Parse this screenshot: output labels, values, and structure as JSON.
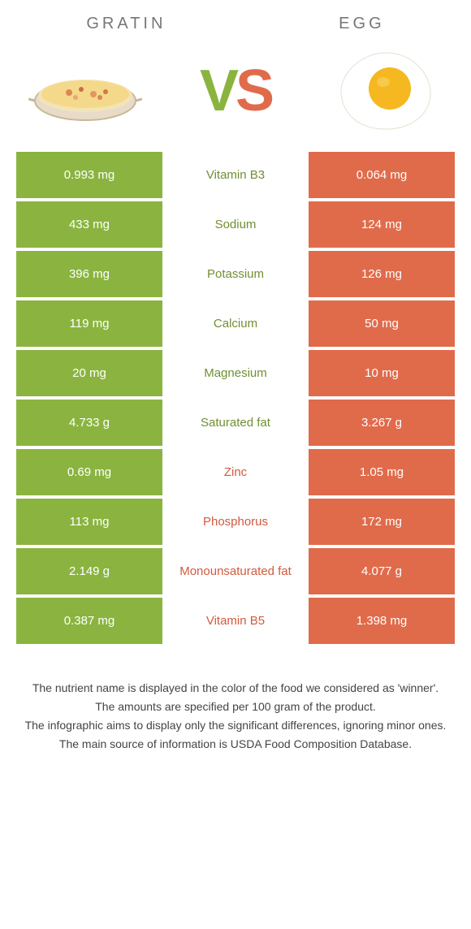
{
  "colors": {
    "left": "#8ab43f",
    "right": "#e06b4b",
    "left_text": "#708f33",
    "right_text": "#d25a3c"
  },
  "header": {
    "left_title": "GRATIN",
    "right_title": "EGG",
    "vs_v": "V",
    "vs_s": "S"
  },
  "rows": [
    {
      "left": "0.993 mg",
      "label": "Vitamin B3",
      "right": "0.064 mg",
      "winner": "left"
    },
    {
      "left": "433 mg",
      "label": "Sodium",
      "right": "124 mg",
      "winner": "left"
    },
    {
      "left": "396 mg",
      "label": "Potassium",
      "right": "126 mg",
      "winner": "left"
    },
    {
      "left": "119 mg",
      "label": "Calcium",
      "right": "50 mg",
      "winner": "left"
    },
    {
      "left": "20 mg",
      "label": "Magnesium",
      "right": "10 mg",
      "winner": "left"
    },
    {
      "left": "4.733 g",
      "label": "Saturated fat",
      "right": "3.267 g",
      "winner": "left"
    },
    {
      "left": "0.69 mg",
      "label": "Zinc",
      "right": "1.05 mg",
      "winner": "right"
    },
    {
      "left": "113 mg",
      "label": "Phosphorus",
      "right": "172 mg",
      "winner": "right"
    },
    {
      "left": "2.149 g",
      "label": "Monounsaturated fat",
      "right": "4.077 g",
      "winner": "right"
    },
    {
      "left": "0.387 mg",
      "label": "Vitamin B5",
      "right": "1.398 mg",
      "winner": "right"
    }
  ],
  "footer": {
    "line1": "The nutrient name is displayed in the color of the food we considered as 'winner'.",
    "line2": "The amounts are specified per 100 gram of the product.",
    "line3": "The infographic aims to display only the significant differences, ignoring minor ones.",
    "line4": "The main source of information is USDA Food Composition Database."
  }
}
